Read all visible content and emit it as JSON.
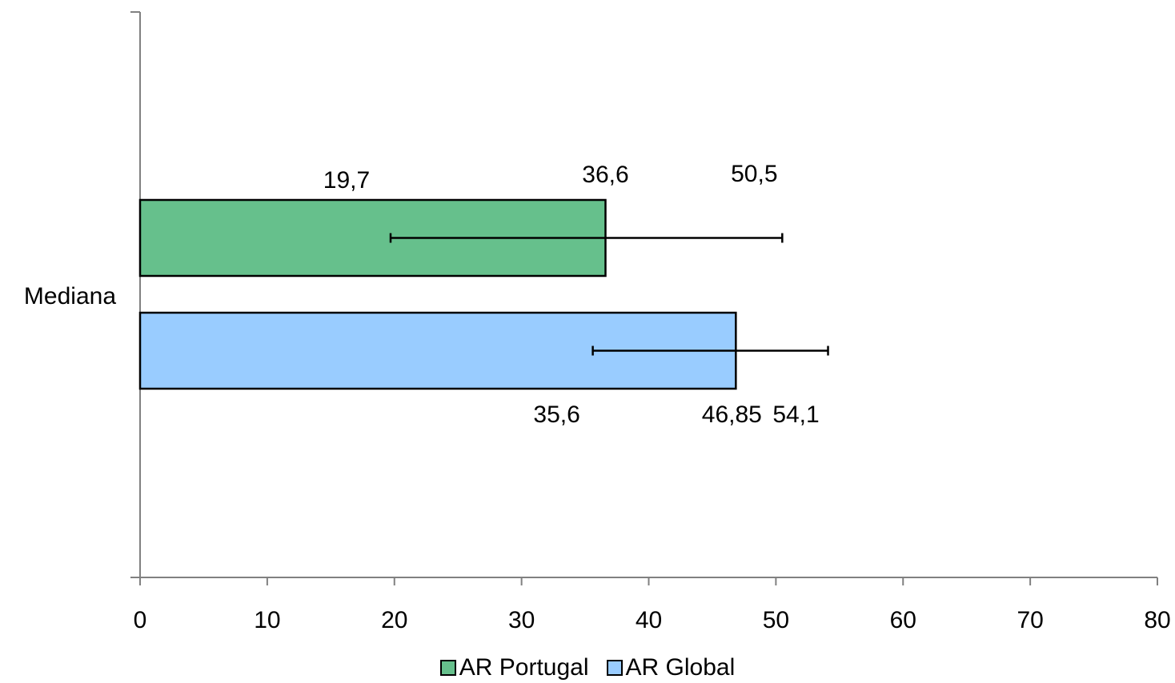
{
  "chart_data": {
    "type": "bar",
    "orientation": "horizontal",
    "categories": [
      "Mediana"
    ],
    "series": [
      {
        "name": "AR Portugal",
        "color": "#66c08c",
        "values": [
          36.6
        ],
        "error_low": [
          19.7
        ],
        "error_high": [
          50.5
        ],
        "labels": {
          "value": "36,6",
          "low": "19,7",
          "high": "50,5"
        }
      },
      {
        "name": "AR Global",
        "color": "#99ccff",
        "values": [
          46.85
        ],
        "error_low": [
          35.6
        ],
        "error_high": [
          54.1
        ],
        "labels": {
          "value": "46,85",
          "low": "35,6",
          "high": "54,1"
        }
      }
    ],
    "title": "",
    "xlabel": "",
    "ylabel": "",
    "xlim": [
      0,
      80
    ],
    "xticks": [
      "0",
      "10",
      "20",
      "30",
      "40",
      "50",
      "60",
      "70",
      "80"
    ],
    "grid": false,
    "legend_position": "bottom"
  }
}
